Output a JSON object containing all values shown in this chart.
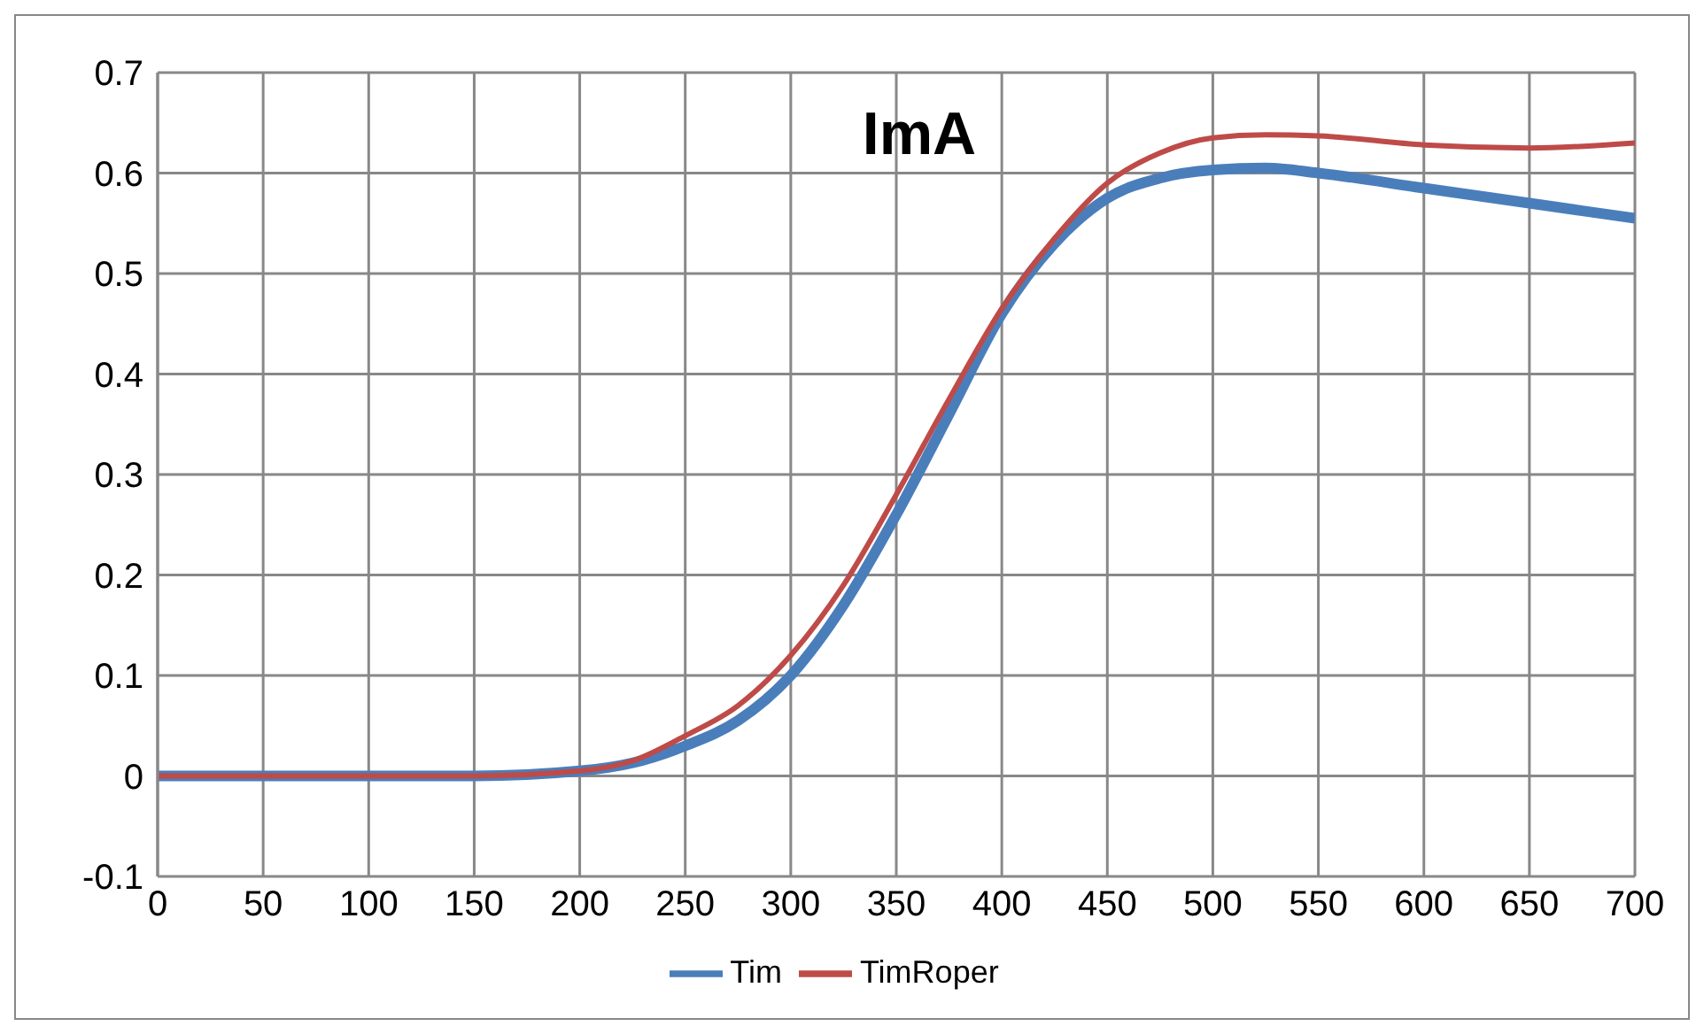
{
  "chart_data": {
    "type": "line",
    "title": "ImA",
    "x": [
      0,
      50,
      100,
      150,
      200,
      225,
      250,
      275,
      300,
      325,
      350,
      375,
      400,
      425,
      450,
      475,
      500,
      525,
      550,
      600,
      650,
      700
    ],
    "series": [
      {
        "name": "Tim",
        "color": "#4a7ebb",
        "values": [
          0,
          0,
          0,
          0,
          0.005,
          0.013,
          0.03,
          0.055,
          0.1,
          0.17,
          0.26,
          0.36,
          0.46,
          0.53,
          0.575,
          0.595,
          0.603,
          0.605,
          0.6,
          0.585,
          0.57,
          0.555
        ]
      },
      {
        "name": "TimRoper",
        "color": "#be4b48",
        "values": [
          0,
          0,
          0,
          0,
          0.005,
          0.015,
          0.04,
          0.07,
          0.12,
          0.19,
          0.28,
          0.375,
          0.465,
          0.535,
          0.59,
          0.62,
          0.635,
          0.638,
          0.637,
          0.628,
          0.625,
          0.63
        ]
      }
    ],
    "xlim": [
      0,
      700
    ],
    "xticks": [
      0,
      50,
      100,
      150,
      200,
      250,
      300,
      350,
      400,
      450,
      500,
      550,
      600,
      650,
      700
    ],
    "ylim": [
      -0.1,
      0.7
    ],
    "yticks": [
      -0.1,
      0,
      0.1,
      0.2,
      0.3,
      0.4,
      0.5,
      0.6,
      0.7
    ],
    "grid": true,
    "legend": "bottom",
    "marker": "none",
    "line_style": "solid"
  }
}
